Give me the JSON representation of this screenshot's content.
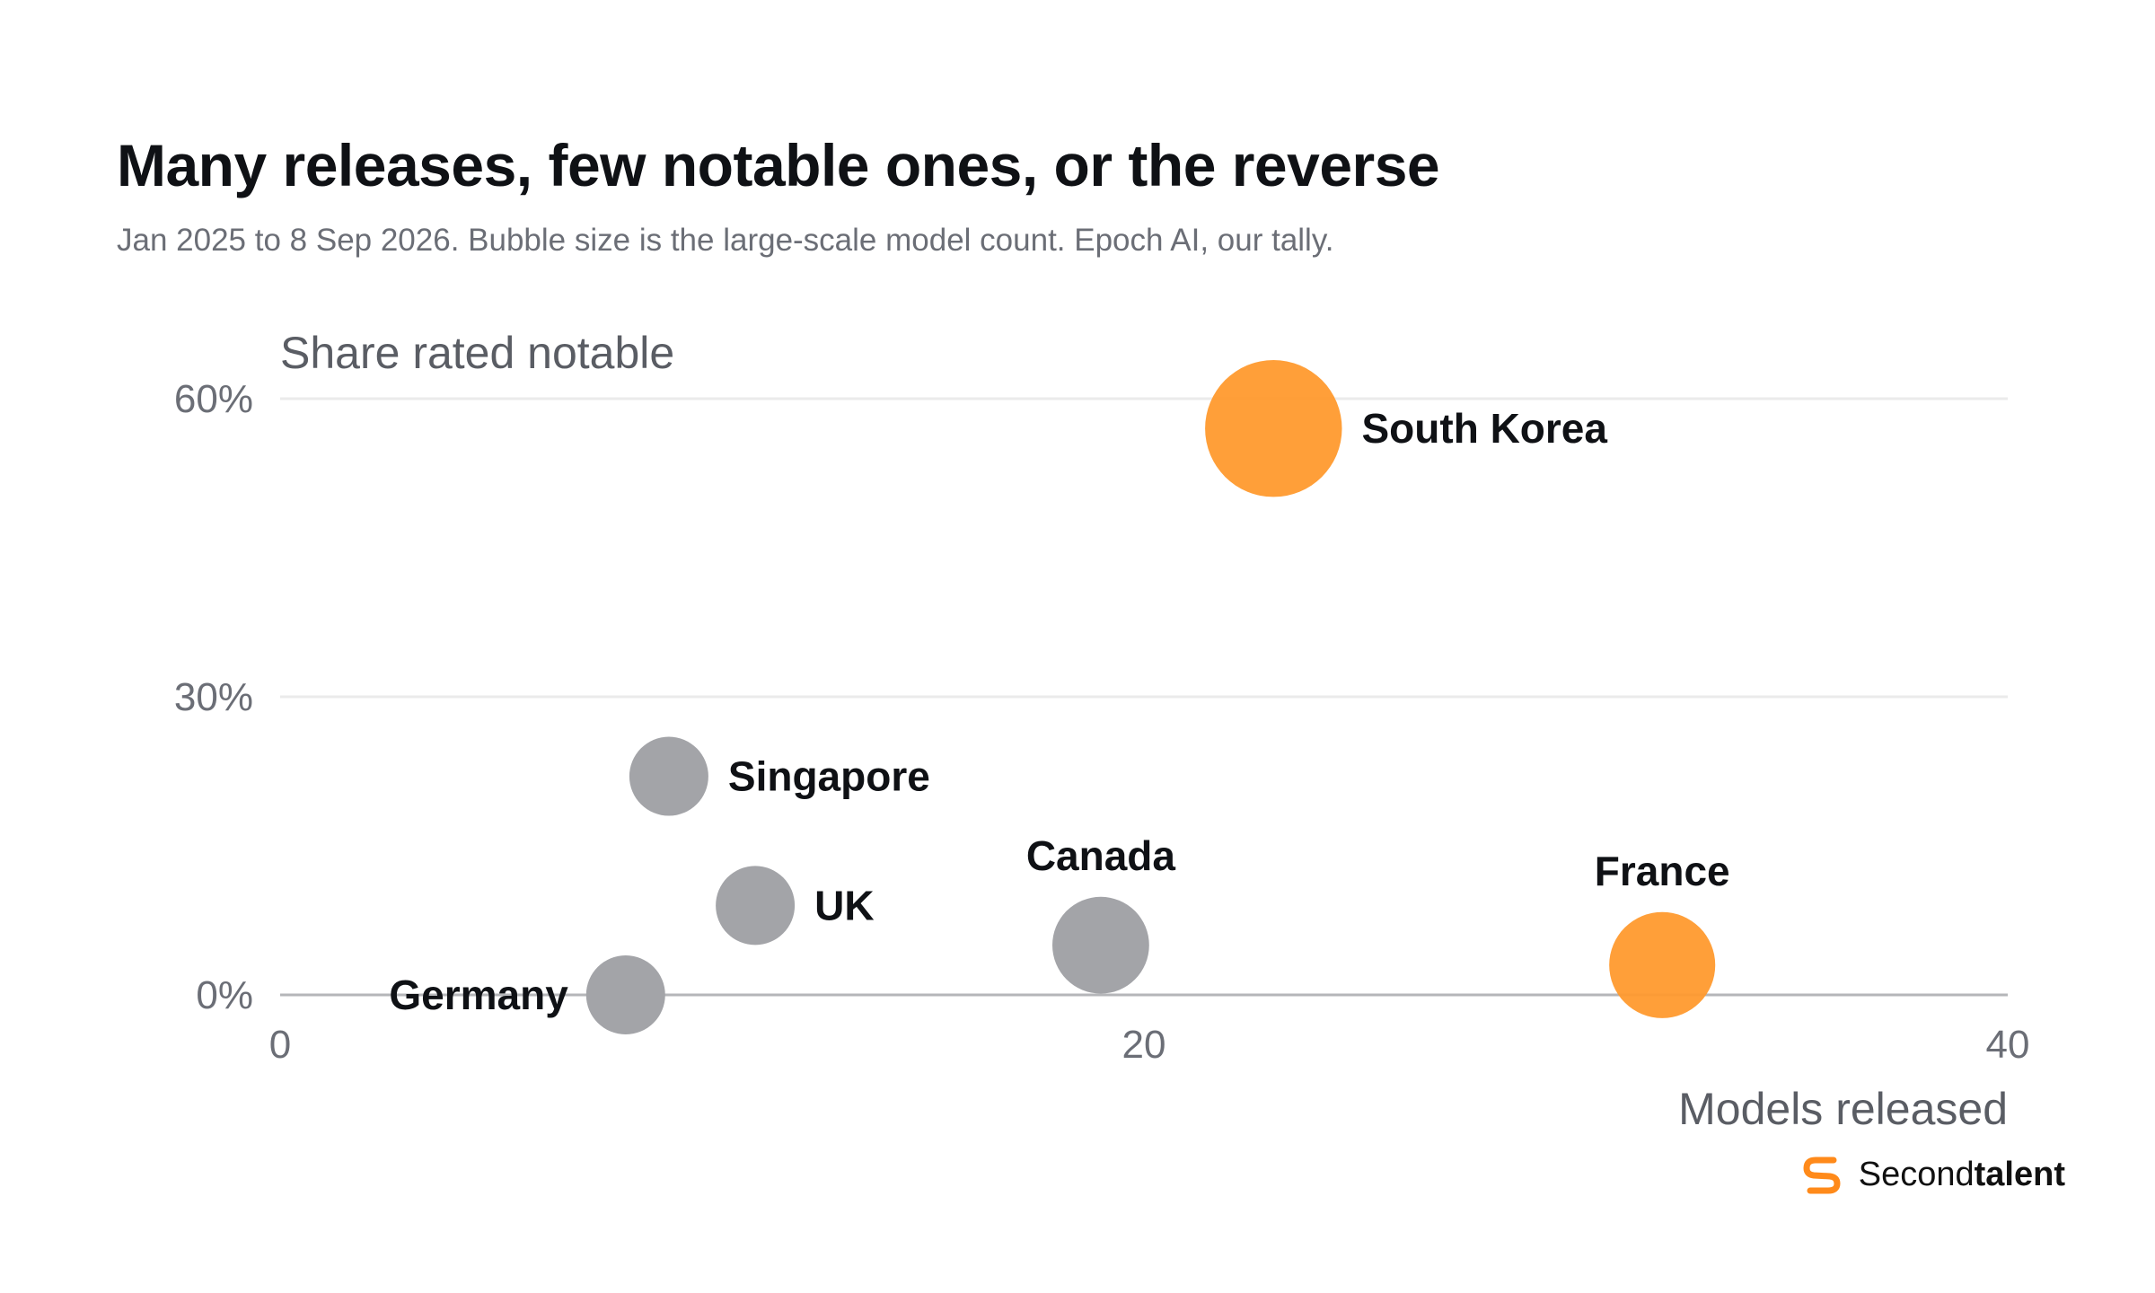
{
  "header": {
    "title": "Many releases, few notable ones, or the reverse",
    "subtitle": "Jan 2025 to 8 Sep 2026. Bubble size is the large-scale model count. Epoch AI, our tally."
  },
  "brand": {
    "name_regular": "Second",
    "name_bold": "talent",
    "icon": "secondtalent-logo-icon",
    "color": "#ff8a1a"
  },
  "colors": {
    "highlight": "#ff9a2e",
    "default": "#a3a4a8",
    "grid": "#ebebeb",
    "baseline": "#b5b6b9"
  },
  "chart_data": {
    "type": "scatter",
    "title": "Many releases, few notable ones, or the reverse",
    "xlabel": "Models released",
    "ylabel": "Share rated notable",
    "xlim": [
      0,
      40
    ],
    "ylim": [
      0,
      60
    ],
    "x_ticks": [
      0,
      20,
      40
    ],
    "x_tick_labels": [
      "0",
      "20",
      "40"
    ],
    "y_ticks": [
      0,
      30,
      60
    ],
    "y_tick_labels": [
      "0%",
      "30%",
      "60%"
    ],
    "grid": true,
    "points": [
      {
        "name": "South Korea",
        "x": 23,
        "y": 57,
        "size": 3,
        "highlight": true,
        "label_pos": "right"
      },
      {
        "name": "Singapore",
        "x": 9,
        "y": 22,
        "size": 1,
        "highlight": false,
        "label_pos": "right"
      },
      {
        "name": "UK",
        "x": 11,
        "y": 9,
        "size": 1,
        "highlight": false,
        "label_pos": "right"
      },
      {
        "name": "Canada",
        "x": 19,
        "y": 5,
        "size": 1.5,
        "highlight": false,
        "label_pos": "above"
      },
      {
        "name": "France",
        "x": 32,
        "y": 3,
        "size": 1.8,
        "highlight": true,
        "label_pos": "above"
      },
      {
        "name": "Germany",
        "x": 8,
        "y": 0,
        "size": 1,
        "highlight": false,
        "label_pos": "left"
      }
    ]
  }
}
